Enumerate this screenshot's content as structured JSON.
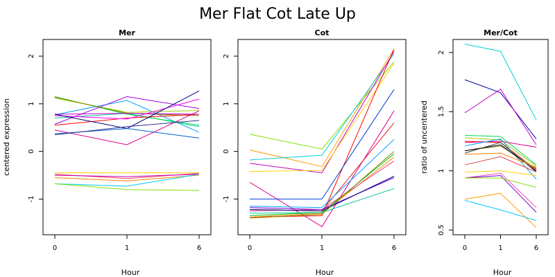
{
  "title": "Mer Flat Cot Late Up",
  "chart_data": [
    {
      "type": "line",
      "title": "Mer",
      "xlabel": "Hour",
      "ylabel": "centered expression",
      "categories": [
        "0",
        "1",
        "6"
      ],
      "ylim": [
        -1.75,
        2.35
      ],
      "yticks": [
        -1,
        0,
        1,
        2
      ],
      "grid": false,
      "series": [
        {
          "color": "#00a0ff",
          "values": [
            0.77,
            1.07,
            0.4
          ]
        },
        {
          "color": "#00c8a0",
          "values": [
            0.7,
            0.8,
            0.52
          ]
        },
        {
          "color": "#00e050",
          "values": [
            1.15,
            0.78,
            0.55
          ]
        },
        {
          "color": "#a0d000",
          "values": [
            1.12,
            0.82,
            0.86
          ]
        },
        {
          "color": "#808000",
          "values": [
            1.14,
            0.8,
            0.75
          ]
        },
        {
          "color": "#ff0000",
          "values": [
            0.55,
            0.7,
            0.78
          ]
        },
        {
          "color": "#e00090",
          "values": [
            0.45,
            0.14,
            0.85
          ]
        },
        {
          "color": "#c000c0",
          "values": [
            0.78,
            0.8,
            0.78
          ]
        },
        {
          "color": "#a000e0",
          "values": [
            0.57,
            1.15,
            0.9
          ]
        },
        {
          "color": "#ff00ff",
          "values": [
            0.75,
            0.68,
            1.1
          ]
        },
        {
          "color": "#000080",
          "values": [
            0.78,
            0.48,
            1.27
          ]
        },
        {
          "color": "#0060d0",
          "values": [
            0.37,
            0.48,
            0.28
          ]
        },
        {
          "color": "#303090",
          "values": [
            0.35,
            0.52,
            0.65
          ]
        },
        {
          "color": "#ffd000",
          "values": [
            -0.45,
            -0.45,
            -0.45
          ]
        },
        {
          "color": "#ff8000",
          "values": [
            -0.55,
            -0.62,
            -0.5
          ]
        },
        {
          "color": "#ff4060",
          "values": [
            -0.48,
            -0.57,
            -0.46
          ]
        },
        {
          "color": "#c000b0",
          "values": [
            -0.5,
            -0.53,
            -0.48
          ]
        },
        {
          "color": "#00c8ff",
          "values": [
            -0.68,
            -0.73,
            -0.48
          ]
        },
        {
          "color": "#80e000",
          "values": [
            -0.68,
            -0.8,
            -0.82
          ]
        }
      ]
    },
    {
      "type": "line",
      "title": "Cot",
      "xlabel": "Hour",
      "categories": [
        "0",
        "1",
        "6"
      ],
      "ylim": [
        -1.75,
        2.35
      ],
      "yticks": [
        -1,
        0,
        1,
        2
      ],
      "grid": false,
      "series": [
        {
          "color": "#80e000",
          "values": [
            0.36,
            0.05,
            1.88
          ]
        },
        {
          "color": "#ffa000",
          "values": [
            0.03,
            -0.32,
            2.15
          ]
        },
        {
          "color": "#00d0e0",
          "values": [
            -0.18,
            -0.08,
            2.05
          ]
        },
        {
          "color": "#c000c0",
          "values": [
            -0.25,
            -0.45,
            2.1
          ]
        },
        {
          "color": "#ffd000",
          "values": [
            -0.42,
            -0.4,
            1.85
          ]
        },
        {
          "color": "#ff0000",
          "values": [
            -1.38,
            -1.35,
            2.15
          ]
        },
        {
          "color": "#e00090",
          "values": [
            -0.65,
            -1.58,
            0.85
          ]
        },
        {
          "color": "#0040d0",
          "values": [
            -1.0,
            -1.0,
            1.3
          ]
        },
        {
          "color": "#e02020",
          "values": [
            -1.22,
            -1.25,
            0.6
          ]
        },
        {
          "color": "#00a0ff",
          "values": [
            -1.15,
            -1.18,
            0.25
          ]
        },
        {
          "color": "#00c000",
          "values": [
            -1.35,
            -1.28,
            -0.05
          ]
        },
        {
          "color": "#ff8000",
          "values": [
            -1.38,
            -1.3,
            -0.12
          ]
        },
        {
          "color": "#e04080",
          "values": [
            -1.25,
            -1.22,
            -0.2
          ]
        },
        {
          "color": "#7000d0",
          "values": [
            -1.18,
            -1.22,
            -0.55
          ]
        },
        {
          "color": "#000080",
          "values": [
            -1.22,
            -1.25,
            -0.52
          ]
        },
        {
          "color": "#00c8a0",
          "values": [
            -1.3,
            -1.28,
            -0.78
          ]
        },
        {
          "color": "#808000",
          "values": [
            -1.4,
            -1.32,
            0.0
          ]
        }
      ]
    },
    {
      "type": "line",
      "title": "Mer/Cot",
      "xlabel": "Hour",
      "ylabel": "ratio of uncentered",
      "categories": [
        "0",
        "1",
        "6"
      ],
      "ylim": [
        0.46,
        2.11
      ],
      "yticks": [
        0.5,
        1.0,
        1.5,
        2.0
      ],
      "grid": false,
      "series": [
        {
          "color": "#00d0d0",
          "values": [
            2.07,
            2.01,
            1.43
          ]
        },
        {
          "color": "#0000a0",
          "values": [
            1.77,
            1.66,
            1.27
          ]
        },
        {
          "color": "#c000c0",
          "values": [
            1.49,
            1.69,
            1.22
          ]
        },
        {
          "color": "#00e050",
          "values": [
            1.3,
            1.29,
            1.05
          ]
        },
        {
          "color": "#a0d000",
          "values": [
            1.28,
            1.26,
            1.04
          ]
        },
        {
          "color": "#ff0000",
          "values": [
            1.25,
            1.24,
            1.01
          ]
        },
        {
          "color": "#e00090",
          "values": [
            1.24,
            1.25,
            1.2
          ]
        },
        {
          "color": "#00a0ff",
          "values": [
            1.21,
            1.27,
            0.93
          ]
        },
        {
          "color": "#808000",
          "values": [
            1.17,
            1.21,
            1.02
          ]
        },
        {
          "color": "#000000",
          "values": [
            1.17,
            1.22,
            1.0
          ]
        },
        {
          "color": "#404040",
          "values": [
            1.15,
            1.24,
            0.99
          ]
        },
        {
          "color": "#ff8000",
          "values": [
            1.14,
            1.15,
            1.03
          ]
        },
        {
          "color": "#e04040",
          "values": [
            1.05,
            1.12,
            0.99
          ]
        },
        {
          "color": "#ffd000",
          "values": [
            0.99,
            1.0,
            0.96
          ]
        },
        {
          "color": "#ff40c0",
          "values": [
            0.94,
            0.98,
            0.69
          ]
        },
        {
          "color": "#7000d0",
          "values": [
            0.94,
            0.96,
            0.65
          ]
        },
        {
          "color": "#80e000",
          "values": [
            0.94,
            0.94,
            0.86
          ]
        },
        {
          "color": "#ffa000",
          "values": [
            0.76,
            0.81,
            0.52
          ]
        },
        {
          "color": "#00c8ff",
          "values": [
            0.75,
            0.67,
            0.58
          ]
        }
      ]
    }
  ]
}
